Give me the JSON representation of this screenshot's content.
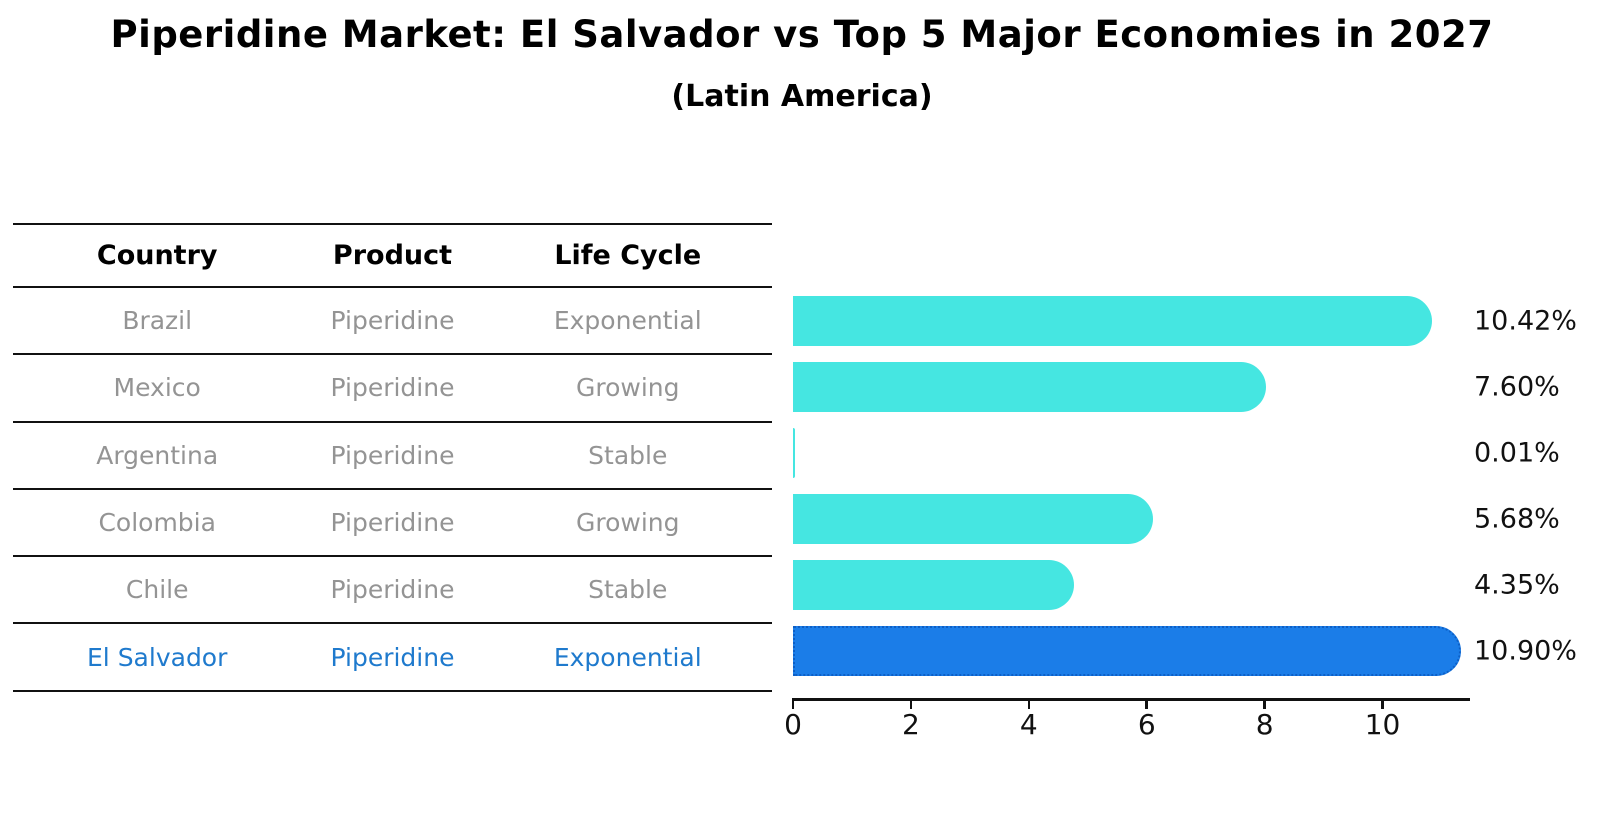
{
  "title": "Piperidine Market: El Salvador vs Top 5 Major Economies in 2027",
  "subtitle": "(Latin America)",
  "table": {
    "headers": [
      "Country",
      "Product",
      "Life Cycle"
    ],
    "rows": [
      {
        "country": "Brazil",
        "product": "Piperidine",
        "life_cycle": "Exponential"
      },
      {
        "country": "Mexico",
        "product": "Piperidine",
        "life_cycle": "Growing"
      },
      {
        "country": "Argentina",
        "product": "Piperidine",
        "life_cycle": "Stable"
      },
      {
        "country": "Colombia",
        "product": "Piperidine",
        "life_cycle": "Growing"
      },
      {
        "country": "Chile",
        "product": "Piperidine",
        "life_cycle": "Stable"
      },
      {
        "country": "El Salvador",
        "product": "Piperidine",
        "life_cycle": "Exponential"
      }
    ],
    "highlight_row_index": 5
  },
  "chart_data": {
    "type": "bar",
    "orientation": "horizontal",
    "title": "Piperidine Market: El Salvador vs Top 5 Major Economies in 2027",
    "subtitle": "(Latin America)",
    "categories": [
      "Brazil",
      "Mexico",
      "Argentina",
      "Colombia",
      "Chile",
      "El Salvador"
    ],
    "values": [
      10.42,
      7.6,
      0.01,
      5.68,
      4.35,
      10.9
    ],
    "value_labels": [
      "10.42%",
      "7.60%",
      "0.01%",
      "5.68%",
      "4.35%",
      "10.90%"
    ],
    "highlight_index": 5,
    "xlabel": "",
    "ylabel": "",
    "xticks": [
      0,
      2,
      4,
      6,
      8,
      10
    ],
    "xlim": [
      0,
      11.5
    ],
    "grid": false,
    "legend": "none",
    "colors": {
      "bar": "#45E6E1",
      "highlight_bar": "#1B7DE8",
      "highlight_bar_border": "#0D5FC6",
      "axis": "#111111",
      "value_label_text": "#111111",
      "table_header_text": "#000000",
      "table_row_text": "#949494",
      "highlight_row_text": "#1F7ACD"
    }
  }
}
